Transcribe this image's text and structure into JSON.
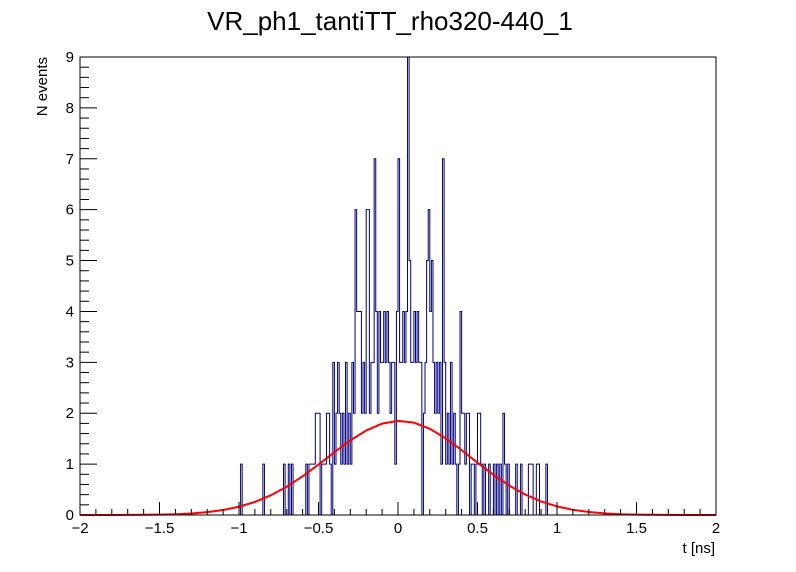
{
  "chart_data": {
    "type": "histogram",
    "title": "VR_ph1_tantiTT_rho320-440_1",
    "xlabel": "t [ns]",
    "ylabel": "N events",
    "xlim": [
      -2,
      2
    ],
    "ylim": [
      0,
      9
    ],
    "x_ticks": [
      "−2",
      "−1.5",
      "−1",
      "−0.5",
      "0",
      "0.5",
      "1",
      "1.5",
      "2"
    ],
    "y_ticks": [
      "0",
      "1",
      "2",
      "3",
      "4",
      "5",
      "6",
      "7",
      "8",
      "9"
    ],
    "grid": false,
    "legend": "none",
    "series": [
      {
        "kind": "histogram",
        "color": "#000080",
        "bin_width": 0.01,
        "bins": [
          [
            -0.985,
            1
          ],
          [
            -0.845,
            1
          ],
          [
            -0.715,
            1
          ],
          [
            -0.685,
            1
          ],
          [
            -0.665,
            1
          ],
          [
            -0.575,
            1
          ],
          [
            -0.555,
            1
          ],
          [
            -0.545,
            1
          ],
          [
            -0.535,
            1
          ],
          [
            -0.525,
            1
          ],
          [
            -0.515,
            2
          ],
          [
            -0.505,
            2
          ],
          [
            -0.495,
            2
          ],
          [
            -0.475,
            1
          ],
          [
            -0.465,
            1
          ],
          [
            -0.455,
            1
          ],
          [
            -0.445,
            2
          ],
          [
            -0.435,
            2
          ],
          [
            -0.425,
            1
          ],
          [
            -0.405,
            3
          ],
          [
            -0.395,
            1
          ],
          [
            -0.385,
            2
          ],
          [
            -0.375,
            3
          ],
          [
            -0.365,
            2
          ],
          [
            -0.355,
            1
          ],
          [
            -0.345,
            2
          ],
          [
            -0.335,
            1
          ],
          [
            -0.325,
            3
          ],
          [
            -0.315,
            1
          ],
          [
            -0.305,
            2
          ],
          [
            -0.295,
            1
          ],
          [
            -0.285,
            3
          ],
          [
            -0.275,
            2
          ],
          [
            -0.265,
            6
          ],
          [
            -0.255,
            4
          ],
          [
            -0.245,
            4
          ],
          [
            -0.235,
            4
          ],
          [
            -0.225,
            2
          ],
          [
            -0.215,
            3
          ],
          [
            -0.205,
            2
          ],
          [
            -0.195,
            6
          ],
          [
            -0.185,
            6
          ],
          [
            -0.175,
            2
          ],
          [
            -0.165,
            3
          ],
          [
            -0.155,
            3
          ],
          [
            -0.145,
            7
          ],
          [
            -0.135,
            4
          ],
          [
            -0.125,
            2
          ],
          [
            -0.115,
            4
          ],
          [
            -0.105,
            3
          ],
          [
            -0.095,
            3
          ],
          [
            -0.085,
            4
          ],
          [
            -0.075,
            3
          ],
          [
            -0.065,
            4
          ],
          [
            -0.055,
            3
          ],
          [
            -0.045,
            2
          ],
          [
            -0.035,
            3
          ],
          [
            -0.025,
            3
          ],
          [
            -0.015,
            1
          ],
          [
            -0.005,
            4
          ],
          [
            0.005,
            7
          ],
          [
            0.015,
            3
          ],
          [
            0.025,
            3
          ],
          [
            0.035,
            4
          ],
          [
            0.045,
            3
          ],
          [
            0.055,
            4
          ],
          [
            0.065,
            9
          ],
          [
            0.075,
            5
          ],
          [
            0.085,
            3
          ],
          [
            0.095,
            3
          ],
          [
            0.105,
            4
          ],
          [
            0.115,
            3
          ],
          [
            0.125,
            4
          ],
          [
            0.135,
            3
          ],
          [
            0.145,
            3
          ],
          [
            0.165,
            2
          ],
          [
            0.175,
            3
          ],
          [
            0.185,
            5
          ],
          [
            0.195,
            6
          ],
          [
            0.205,
            4
          ],
          [
            0.215,
            5
          ],
          [
            0.225,
            3
          ],
          [
            0.235,
            2
          ],
          [
            0.245,
            3
          ],
          [
            0.255,
            2
          ],
          [
            0.265,
            3
          ],
          [
            0.275,
            1
          ],
          [
            0.285,
            7
          ],
          [
            0.295,
            3
          ],
          [
            0.305,
            1
          ],
          [
            0.315,
            2
          ],
          [
            0.325,
            1
          ],
          [
            0.335,
            3
          ],
          [
            0.345,
            1
          ],
          [
            0.355,
            2
          ],
          [
            0.365,
            1
          ],
          [
            0.385,
            1
          ],
          [
            0.395,
            4
          ],
          [
            0.405,
            2
          ],
          [
            0.415,
            2
          ],
          [
            0.425,
            1
          ],
          [
            0.435,
            2
          ],
          [
            0.445,
            2
          ],
          [
            0.465,
            1
          ],
          [
            0.475,
            1
          ],
          [
            0.495,
            1
          ],
          [
            0.505,
            2
          ],
          [
            0.515,
            2
          ],
          [
            0.525,
            1
          ],
          [
            0.545,
            1
          ],
          [
            0.575,
            1
          ],
          [
            0.605,
            1
          ],
          [
            0.625,
            1
          ],
          [
            0.645,
            1
          ],
          [
            0.665,
            2
          ],
          [
            0.675,
            1
          ],
          [
            0.695,
            1
          ],
          [
            0.745,
            1
          ],
          [
            0.775,
            1
          ],
          [
            0.825,
            1
          ],
          [
            0.835,
            1
          ],
          [
            0.845,
            1
          ],
          [
            0.875,
            1
          ],
          [
            0.885,
            1
          ],
          [
            0.935,
            1
          ]
        ]
      },
      {
        "kind": "line",
        "color": "#ff0000",
        "x": [
          -2,
          -1.9,
          -1.8,
          -1.7,
          -1.6,
          -1.5,
          -1.4,
          -1.3,
          -1.2,
          -1.1,
          -1.0,
          -0.9,
          -0.8,
          -0.7,
          -0.6,
          -0.5,
          -0.4,
          -0.3,
          -0.2,
          -0.1,
          0,
          0.1,
          0.2,
          0.3,
          0.4,
          0.5,
          0.6,
          0.7,
          0.8,
          0.9,
          1.0,
          1.1,
          1.2,
          1.3,
          1.4,
          1.5,
          1.6,
          1.7,
          1.8,
          1.9,
          2.0
        ],
        "y": [
          0.0001,
          0.0003,
          0.0007,
          0.0017,
          0.0037,
          0.0079,
          0.0159,
          0.0306,
          0.0559,
          0.0975,
          0.162,
          0.256,
          0.386,
          0.555,
          0.76,
          0.992,
          1.235,
          1.465,
          1.66,
          1.795,
          1.85,
          1.815,
          1.694,
          1.506,
          1.275,
          1.028,
          0.79,
          0.578,
          0.403,
          0.267,
          0.169,
          0.102,
          0.058,
          0.032,
          0.016,
          0.008,
          0.004,
          0.0018,
          0.0008,
          0.0003,
          0.0001
        ]
      }
    ]
  }
}
